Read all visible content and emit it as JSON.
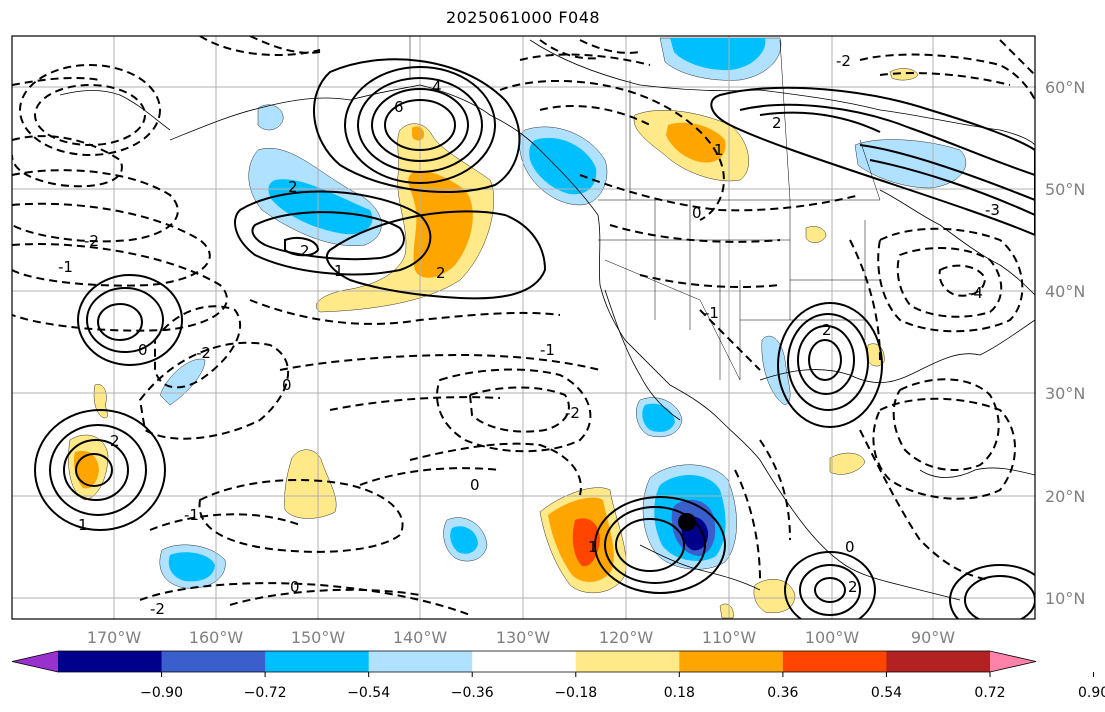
{
  "title": "2025061000 F048",
  "lon_labels": [
    "170°W",
    "160°W",
    "150°W",
    "140°W",
    "130°W",
    "120°W",
    "110°W",
    "100°W",
    "90°W"
  ],
  "lat_labels": [
    "60°N",
    "50°N",
    "40°N",
    "30°N",
    "20°N",
    "10°N"
  ],
  "colorbar": {
    "tick_labels": [
      "−0.90",
      "−0.72",
      "−0.54",
      "−0.36",
      "−0.18",
      "0.18",
      "0.36",
      "0.54",
      "0.72",
      "0.90"
    ],
    "colors": [
      "#9932cc",
      "#00008b",
      "#3a5fcd",
      "#00bfff",
      "#b0e2ff",
      "#ffffff",
      "#ffe989",
      "#ffa500",
      "#ff4500",
      "#b22222",
      "#ff82ab"
    ]
  },
  "contour_labels": [
    {
      "text": "6",
      "id": "c-6"
    },
    {
      "text": "4",
      "id": "c-4a"
    },
    {
      "text": "2",
      "id": "c-2a"
    },
    {
      "text": "2",
      "id": "c-2b"
    },
    {
      "text": "1",
      "id": "c-1a"
    },
    {
      "text": "2",
      "id": "c-2c"
    },
    {
      "text": "-2",
      "id": "c-n2a"
    },
    {
      "text": "-1",
      "id": "c-n1a"
    },
    {
      "text": "0",
      "id": "c-0a"
    },
    {
      "text": "-2",
      "id": "c-n2b"
    },
    {
      "text": "2",
      "id": "c-2d"
    },
    {
      "text": "1",
      "id": "c-1b"
    },
    {
      "text": "0",
      "id": "c-0b"
    },
    {
      "text": "-1",
      "id": "c-n1b"
    },
    {
      "text": "0",
      "id": "c-0c"
    },
    {
      "text": "2",
      "id": "c-2e"
    },
    {
      "text": "-2",
      "id": "c-n2c"
    },
    {
      "text": "-1",
      "id": "c-n1c"
    },
    {
      "text": "0",
      "id": "c-0d"
    },
    {
      "text": "-4",
      "id": "c-n4"
    },
    {
      "text": "-3",
      "id": "c-n3"
    },
    {
      "text": "1",
      "id": "c-1c"
    },
    {
      "text": "2",
      "id": "c-2f"
    },
    {
      "text": "-2",
      "id": "c-n2d"
    },
    {
      "text": "0",
      "id": "c-0e"
    },
    {
      "text": "-1",
      "id": "c-n1d"
    },
    {
      "text": "0",
      "id": "c-0f"
    },
    {
      "text": "1",
      "id": "c-1d"
    },
    {
      "text": "2",
      "id": "c-2g"
    },
    {
      "text": "-2",
      "id": "c-n2e"
    }
  ],
  "marker": {
    "label": "storm-center"
  }
}
